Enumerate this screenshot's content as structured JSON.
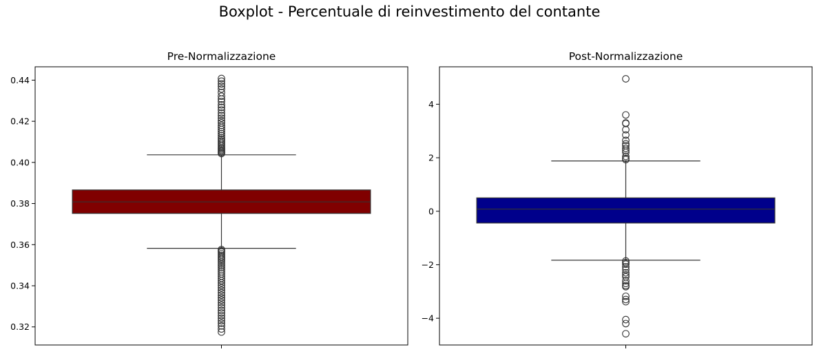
{
  "figure": {
    "suptitle": "Boxplot - Percentuale di reinvestimento del contante"
  },
  "chart_data": [
    {
      "type": "boxplot",
      "title": "Pre-Normalizzazione",
      "xlabel": "",
      "ylabel": "",
      "color": "#800000",
      "ylim": [
        0.3112,
        0.4465
      ],
      "yticks": [
        0.32,
        0.34,
        0.36,
        0.38,
        0.4,
        0.42,
        0.44
      ],
      "ytick_labels": [
        "0.32",
        "0.34",
        "0.36",
        "0.38",
        "0.40",
        "0.42",
        "0.44"
      ],
      "box": {
        "whisker_low": 0.3582,
        "q1": 0.3752,
        "median": 0.3808,
        "q3": 0.3866,
        "whisker_high": 0.4037
      },
      "outliers": [
        0.4408,
        0.4395,
        0.4382,
        0.437,
        0.4357,
        0.434,
        0.4322,
        0.4308,
        0.4296,
        0.428,
        0.4268,
        0.4255,
        0.424,
        0.4228,
        0.4215,
        0.4203,
        0.4192,
        0.418,
        0.417,
        0.416,
        0.415,
        0.414,
        0.413,
        0.412,
        0.4112,
        0.4104,
        0.4096,
        0.4088,
        0.408,
        0.4072,
        0.4066,
        0.406,
        0.4054,
        0.4048,
        0.4043,
        0.3576,
        0.357,
        0.3564,
        0.3556,
        0.3548,
        0.354,
        0.3532,
        0.3524,
        0.3515,
        0.3506,
        0.3497,
        0.3488,
        0.3478,
        0.3468,
        0.3458,
        0.3447,
        0.3436,
        0.3425,
        0.3414,
        0.3402,
        0.339,
        0.3378,
        0.3366,
        0.3354,
        0.3342,
        0.333,
        0.3318,
        0.3306,
        0.3293,
        0.328,
        0.3268,
        0.3255,
        0.3242,
        0.323,
        0.3218,
        0.3205,
        0.319,
        0.3175
      ]
    },
    {
      "type": "boxplot",
      "title": "Post-Normalizzazione",
      "xlabel": "",
      "ylabel": "",
      "color": "#00008b",
      "ylim": [
        -5.0,
        5.4
      ],
      "yticks": [
        -4,
        -2,
        0,
        2,
        4
      ],
      "ytick_labels": [
        "−4",
        "−2",
        "0",
        "2",
        "4"
      ],
      "box": {
        "whisker_low": -1.83,
        "q1": -0.44,
        "median": 0.08,
        "q3": 0.5,
        "whisker_high": 1.88
      },
      "outliers": [
        4.95,
        3.6,
        3.3,
        3.28,
        3.05,
        2.85,
        2.65,
        2.52,
        2.45,
        2.35,
        2.28,
        2.2,
        2.05,
        1.98,
        1.93,
        -1.86,
        -1.92,
        -1.98,
        -2.08,
        -2.18,
        -2.3,
        -2.38,
        -2.45,
        -2.6,
        -2.7,
        -2.78,
        -2.82,
        -3.18,
        -3.3,
        -3.38,
        -4.05,
        -4.2,
        -4.58
      ]
    }
  ]
}
